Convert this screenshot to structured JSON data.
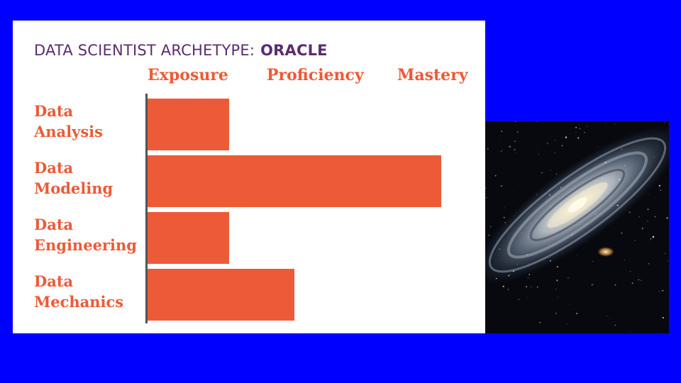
{
  "colors": {
    "background": "#0000ff",
    "title": "#5b2c6f",
    "accent": "#ec5a38",
    "axis": "#555555"
  },
  "title": {
    "main": "DATA SCIENTIST ARCHETYPE:",
    "emphasis": "ORACLE"
  },
  "chart_data": {
    "type": "bar",
    "orientation": "horizontal",
    "levels": [
      "Exposure",
      "Proficiency",
      "Mastery"
    ],
    "categories": [
      [
        "Data",
        "Analysis"
      ],
      [
        "Data",
        "Modeling"
      ],
      [
        "Data",
        "Engineering"
      ],
      [
        "Data",
        "Mechanics"
      ]
    ],
    "values": [
      1.0,
      3.6,
      1.0,
      1.8
    ],
    "xlim": [
      0,
      4
    ],
    "grid": false,
    "legend": "none"
  },
  "image": {
    "icon": "galaxy-photo"
  }
}
